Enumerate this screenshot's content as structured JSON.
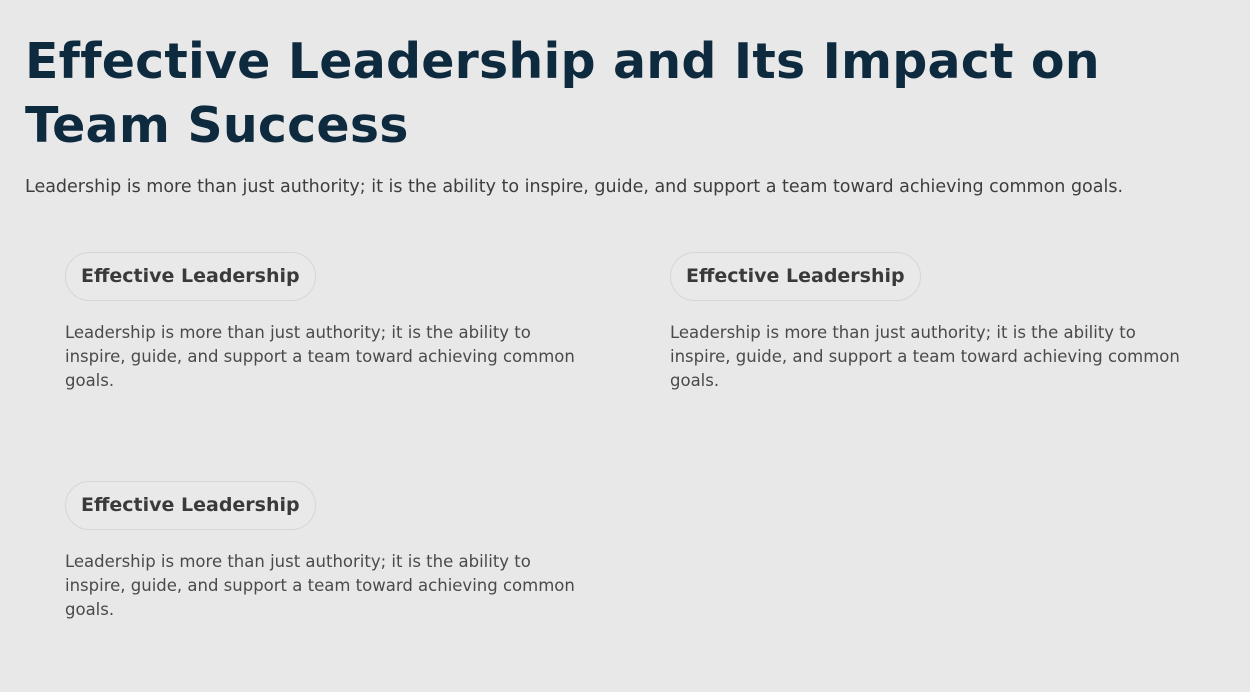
{
  "header": {
    "title": "Effective Leadership and Its Impact on Team Success",
    "intro": "Leadership is more than just authority; it is the ability to inspire, guide, and support a team toward achieving common goals."
  },
  "cards": [
    {
      "title": "Effective Leadership",
      "text": "Leadership is more than just authority; it is the ability to inspire, guide, and support a team toward achieving common goals."
    },
    {
      "title": "Effective Leadership",
      "text": "Leadership is more than just authority; it is the ability to inspire, guide, and support a team toward achieving common goals."
    },
    {
      "title": "Effective Leadership",
      "text": "Leadership is more than just authority; it is the ability to inspire, guide, and support a team toward achieving common goals."
    }
  ],
  "colors": {
    "background": "#e8e8e8",
    "title": "#0d2a3f",
    "text": "#3d3d3d",
    "pill_border": "#d6d6d6"
  }
}
